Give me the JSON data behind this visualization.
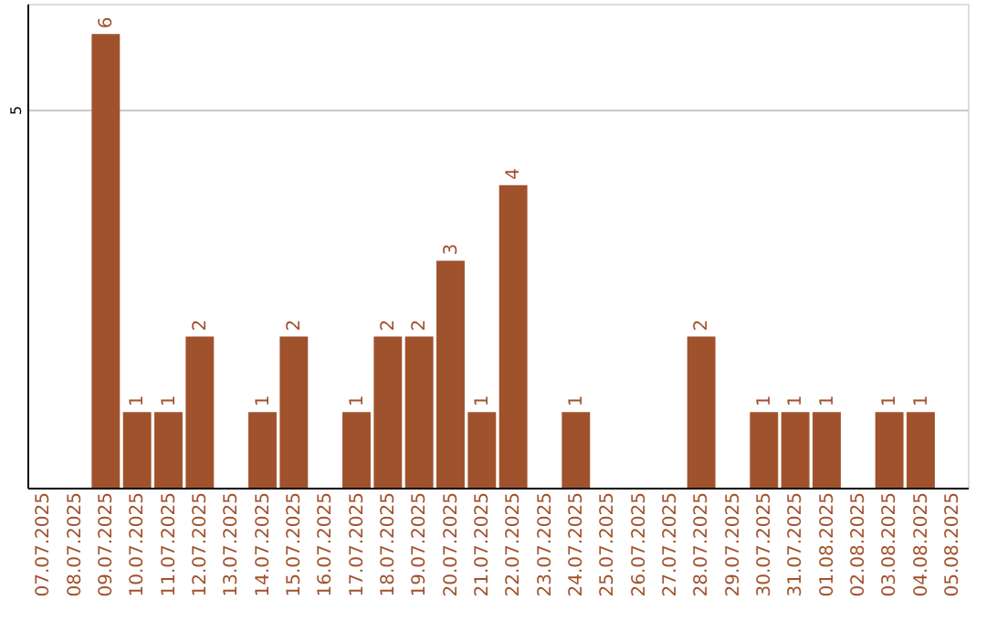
{
  "chart_data": {
    "type": "bar",
    "categories": [
      "07.07.2025",
      "08.07.2025",
      "09.07.2025",
      "10.07.2025",
      "11.07.2025",
      "12.07.2025",
      "13.07.2025",
      "14.07.2025",
      "15.07.2025",
      "16.07.2025",
      "17.07.2025",
      "18.07.2025",
      "19.07.2025",
      "20.07.2025",
      "21.07.2025",
      "22.07.2025",
      "23.07.2025",
      "24.07.2025",
      "25.07.2025",
      "26.07.2025",
      "27.07.2025",
      "28.07.2025",
      "29.07.2025",
      "30.07.2025",
      "31.07.2025",
      "01.08.2025",
      "02.08.2025",
      "03.08.2025",
      "04.08.2025",
      "05.08.2025"
    ],
    "values": [
      null,
      null,
      6,
      1,
      1,
      2,
      null,
      1,
      2,
      null,
      1,
      2,
      2,
      3,
      1,
      4,
      null,
      1,
      null,
      null,
      null,
      2,
      null,
      1,
      1,
      1,
      null,
      1,
      1,
      null
    ],
    "color": "#a0522d",
    "ylim": [
      0,
      6.4
    ],
    "yticks": [
      5
    ],
    "grid": "y",
    "data_labels": true
  }
}
